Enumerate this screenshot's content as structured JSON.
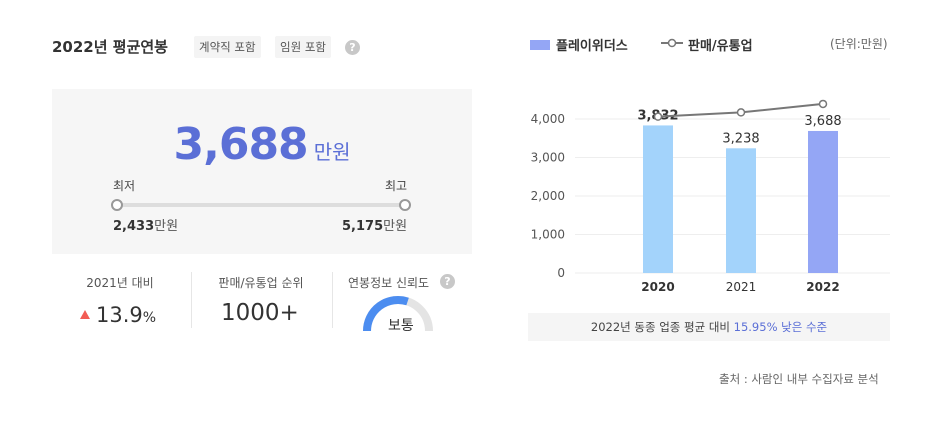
{
  "header": {
    "title": "2022년 평균연봉",
    "tags": [
      "계약직 포함",
      "임원 포함"
    ],
    "help_symbol": "?"
  },
  "salary": {
    "value": "3,688",
    "unit": "만원",
    "min_label": "최저",
    "max_label": "최고",
    "min_value": "2,433",
    "max_value": "5,175",
    "range_unit": "만원"
  },
  "stats": {
    "yoy_label": "2021년 대비",
    "yoy_value": "13.9",
    "yoy_unit": "%",
    "yoy_direction": "up",
    "rank_label": "판매/유통업 순위",
    "rank_value": "1000+",
    "reliability_label": "연봉정보 신뢰도",
    "reliability_value": "보통",
    "reliability_level": 0.6
  },
  "legend": {
    "company": "플레이위더스",
    "industry": "판매/유통업",
    "unit_note": "(단위:만원)"
  },
  "chart_data": {
    "type": "bar",
    "categories": [
      "2020",
      "2021",
      "2022"
    ],
    "series": [
      {
        "name": "플레이위더스",
        "values": [
          3832,
          3238,
          3688
        ],
        "labels": [
          "3,832",
          "3,238",
          "3,688"
        ]
      },
      {
        "name": "판매/유통업",
        "type": "line",
        "values": [
          4060,
          4170,
          4390
        ]
      }
    ],
    "y_ticks": [
      "0",
      "1,000",
      "2,000",
      "3,000",
      "4,000"
    ],
    "y_tick_values": [
      0,
      1000,
      2000,
      3000,
      4000
    ],
    "ylim": [
      0,
      4700
    ],
    "highlight_category": "2022",
    "bar_colors": {
      "default": "#a3d3fb",
      "highlight": "#94a6f5"
    },
    "line_color": "#777777",
    "grid": true
  },
  "summary": {
    "prefix": "2022년 동종 업종 평균 대비",
    "highlight": "15.95% 낮은 수준"
  },
  "source": "출처 : 사람인 내부 수집자료 분석"
}
